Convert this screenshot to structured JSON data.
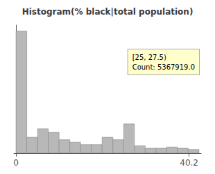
{
  "chart_data": {
    "type": "histogram",
    "title": "Histogram(% black|total population)",
    "bins": [
      0,
      2.5,
      5,
      7.5,
      10,
      12.5,
      15,
      17.5,
      20,
      22.5,
      25,
      27.5,
      30,
      32.5,
      35,
      37.5,
      40,
      42.5
    ],
    "values": [
      1.0,
      0.13,
      0.2,
      0.17,
      0.11,
      0.09,
      0.07,
      0.07,
      0.13,
      0.11,
      0.24,
      0.06,
      0.04,
      0.04,
      0.05,
      0.04,
      0.03
    ],
    "color": "#b8b8b8",
    "xlim": [
      -0.5,
      43
    ],
    "xticks": [
      0,
      40.2
    ],
    "ylim": [
      0,
      1.05
    ],
    "tick_labels": "x",
    "grid": false,
    "annotations": [
      "[25, 27.5)\nCount: 5367919.0"
    ]
  }
}
